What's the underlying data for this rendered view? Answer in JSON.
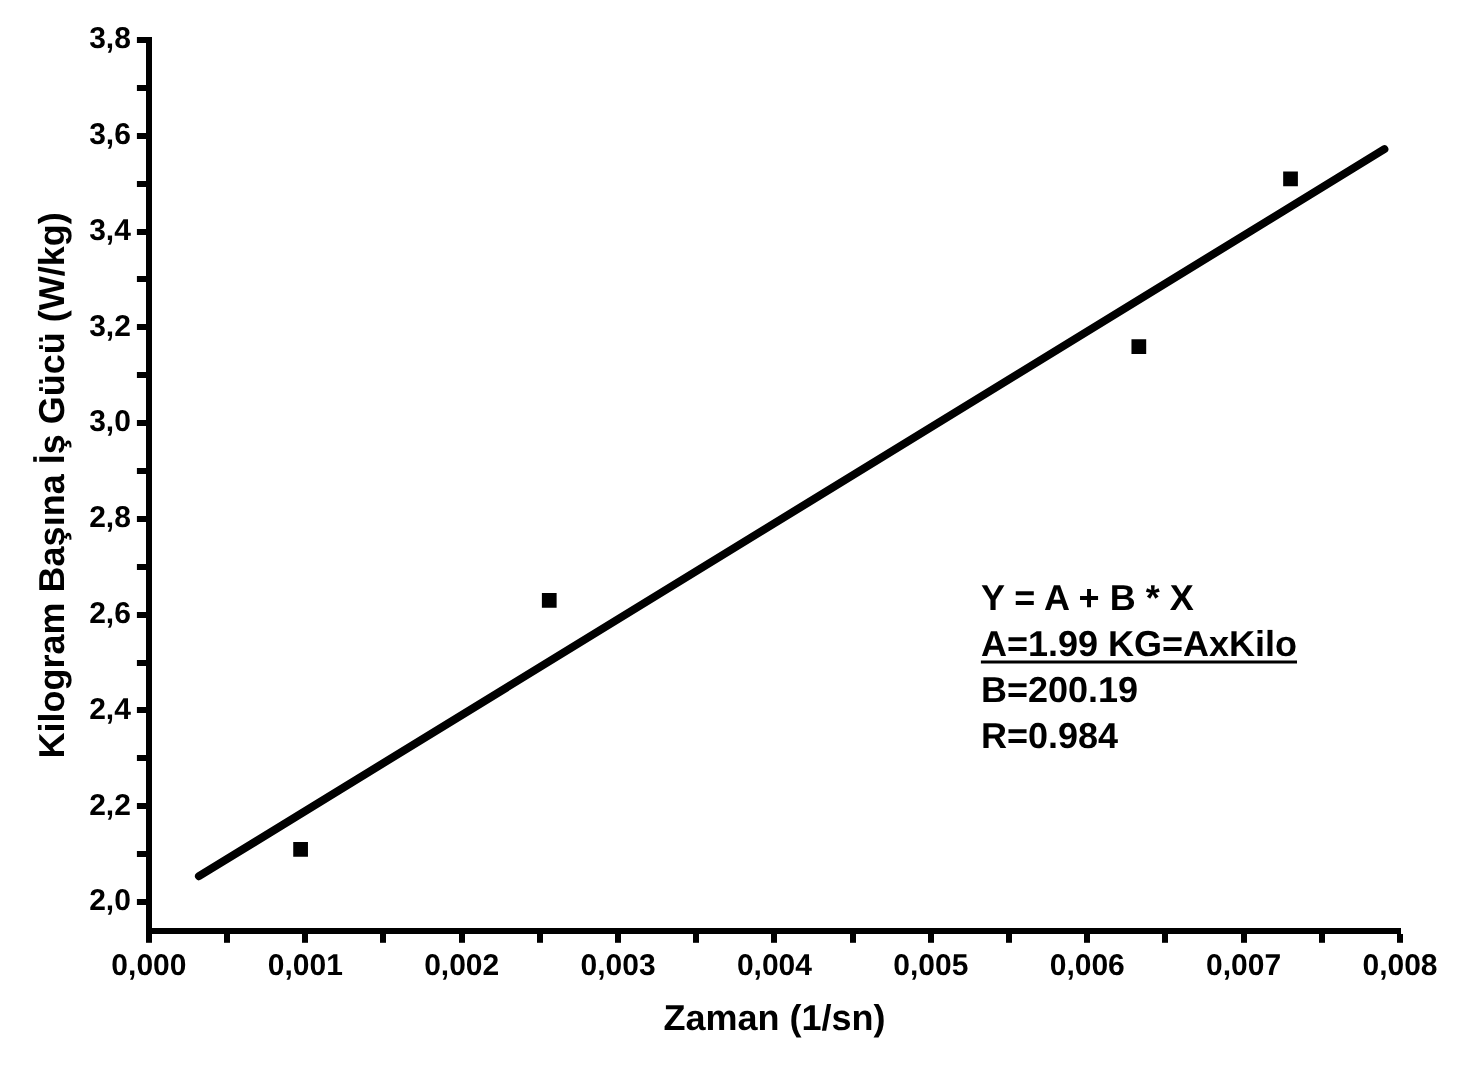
{
  "chart_data": {
    "type": "scatter",
    "xlabel": "Zaman (1/sn)",
    "ylabel": "Kilogram Başına İş Gücü (W/kg)",
    "marker": "square",
    "legend": false,
    "grid": false,
    "series": [
      {
        "type": "scatter",
        "color": "#000000",
        "x": [
          0.00097,
          0.00256,
          0.00633,
          0.0073
        ],
        "values": [
          2.11,
          2.63,
          3.16,
          3.51
        ]
      },
      {
        "type": "line",
        "marker": "none",
        "color": "#000000",
        "x": [
          0.00032,
          0.0079
        ],
        "values": [
          2.054,
          3.572
        ]
      }
    ],
    "xlim": [
      0,
      0.008
    ],
    "xticks": [
      {
        "value": 0,
        "label": "0,000"
      },
      {
        "value": 0.0005,
        "label": null
      },
      {
        "value": 0.001,
        "label": "0,001"
      },
      {
        "value": 0.0015,
        "label": null
      },
      {
        "value": 0.002,
        "label": "0,002"
      },
      {
        "value": 0.0025,
        "label": null
      },
      {
        "value": 0.003,
        "label": "0,003"
      },
      {
        "value": 0.0035,
        "label": null
      },
      {
        "value": 0.004,
        "label": "0,004"
      },
      {
        "value": 0.0045,
        "label": null
      },
      {
        "value": 0.005,
        "label": "0,005"
      },
      {
        "value": 0.0055,
        "label": null
      },
      {
        "value": 0.006,
        "label": "0,006"
      },
      {
        "value": 0.0065,
        "label": null
      },
      {
        "value": 0.007,
        "label": "0,007"
      },
      {
        "value": 0.0075,
        "label": null
      },
      {
        "value": 0.008,
        "label": "0,008"
      }
    ],
    "ylim": [
      1.94,
      3.8
    ],
    "yticks": [
      {
        "value": 2.0,
        "label": "2,0"
      },
      {
        "value": 2.1,
        "label": null
      },
      {
        "value": 2.2,
        "label": "2,2"
      },
      {
        "value": 2.3,
        "label": null
      },
      {
        "value": 2.4,
        "label": "2,4"
      },
      {
        "value": 2.5,
        "label": null
      },
      {
        "value": 2.6,
        "label": "2,6"
      },
      {
        "value": 2.7,
        "label": null
      },
      {
        "value": 2.8,
        "label": "2,8"
      },
      {
        "value": 2.9,
        "label": null
      },
      {
        "value": 3.0,
        "label": "3,0"
      },
      {
        "value": 3.1,
        "label": null
      },
      {
        "value": 3.2,
        "label": "3,2"
      },
      {
        "value": 3.3,
        "label": null
      },
      {
        "value": 3.4,
        "label": "3,4"
      },
      {
        "value": 3.5,
        "label": null
      },
      {
        "value": 3.6,
        "label": "3,6"
      },
      {
        "value": 3.7,
        "label": null
      },
      {
        "value": 3.8,
        "label": "3,8"
      }
    ],
    "annotations": [
      "Y = A + B * X",
      "A=1.99 KG=AxKilo",
      "B=200.19",
      "R=0.984"
    ]
  }
}
